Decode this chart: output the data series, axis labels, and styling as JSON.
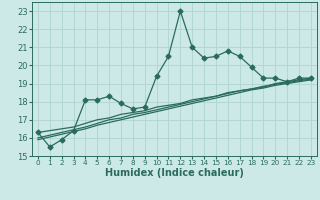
{
  "xlabel": "Humidex (Indice chaleur)",
  "background_color": "#cce9e7",
  "grid_color": "#afd4d2",
  "line_color": "#2a6b60",
  "x": [
    0,
    1,
    2,
    3,
    4,
    5,
    6,
    7,
    8,
    9,
    10,
    11,
    12,
    13,
    14,
    15,
    16,
    17,
    18,
    19,
    20,
    21,
    22,
    23
  ],
  "y_jagged": [
    16.3,
    15.5,
    15.9,
    16.4,
    18.1,
    18.1,
    18.3,
    17.9,
    17.6,
    17.7,
    19.4,
    20.5,
    23.0,
    21.0,
    20.4,
    20.5,
    20.8,
    20.5,
    19.9,
    19.3,
    19.3,
    19.1,
    19.3,
    19.3
  ],
  "y_line1": [
    16.3,
    16.4,
    16.5,
    16.6,
    16.8,
    17.0,
    17.1,
    17.3,
    17.4,
    17.5,
    17.7,
    17.8,
    17.9,
    18.1,
    18.2,
    18.3,
    18.5,
    18.6,
    18.7,
    18.8,
    19.0,
    19.1,
    19.2,
    19.3
  ],
  "y_line2": [
    16.0,
    16.15,
    16.3,
    16.45,
    16.6,
    16.8,
    17.0,
    17.1,
    17.3,
    17.4,
    17.55,
    17.7,
    17.85,
    18.0,
    18.15,
    18.3,
    18.45,
    18.6,
    18.7,
    18.85,
    18.95,
    19.05,
    19.15,
    19.25
  ],
  "y_line3": [
    15.9,
    16.05,
    16.2,
    16.35,
    16.5,
    16.7,
    16.85,
    17.0,
    17.15,
    17.3,
    17.45,
    17.6,
    17.75,
    17.9,
    18.05,
    18.2,
    18.35,
    18.5,
    18.65,
    18.75,
    18.9,
    19.0,
    19.1,
    19.2
  ],
  "xlim": [
    -0.5,
    23.5
  ],
  "ylim": [
    15.0,
    23.5
  ],
  "yticks": [
    15,
    16,
    17,
    18,
    19,
    20,
    21,
    22,
    23
  ],
  "xticks": [
    0,
    1,
    2,
    3,
    4,
    5,
    6,
    7,
    8,
    9,
    10,
    11,
    12,
    13,
    14,
    15,
    16,
    17,
    18,
    19,
    20,
    21,
    22,
    23
  ],
  "markersize": 2.5,
  "linewidth": 0.9
}
